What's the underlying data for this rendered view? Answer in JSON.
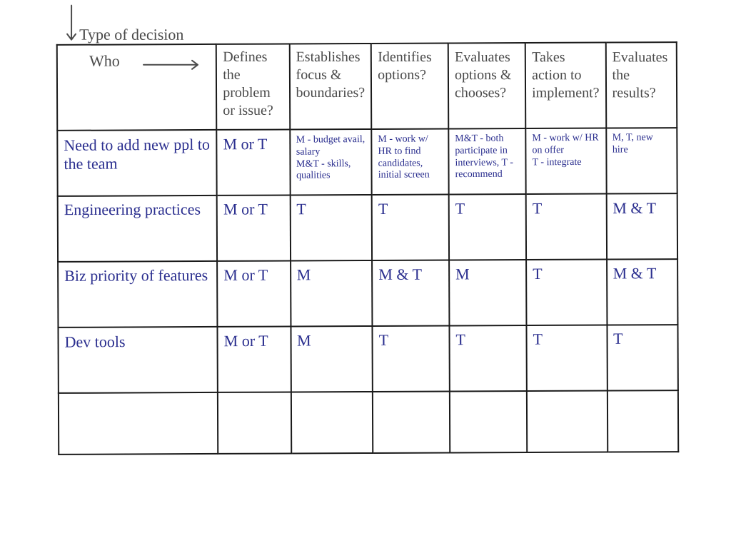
{
  "type": "table",
  "background_color": "#ffffff",
  "border_color": "#1a1a1a",
  "header_text_color": "#4a4a4a",
  "body_text_color": "#2b2f8f",
  "font_family": "handwriting",
  "header_fontsize_pt": 16,
  "body_fontsize_pt": 18,
  "corner": {
    "who_label": "Who",
    "type_label": "Type of decision",
    "arrow_right": true,
    "arrow_down": true
  },
  "columns": [
    "Defines the problem or issue?",
    "Establishes focus & boundaries?",
    "Identifies options?",
    "Evaluates options & chooses?",
    "Takes action to implement?",
    "Evaluates the results?"
  ],
  "rows": [
    {
      "label": "Need to add new ppl to the team",
      "small": true,
      "cells": [
        "M or T",
        "M - budget avail, salary\nM&T - skills, qualities",
        "M - work w/ HR to find candidates, initial screen",
        "M&T - both participate in interviews, T - recommend",
        "M - work w/ HR on offer\nT - integrate",
        "M, T, new hire"
      ]
    },
    {
      "label": "Engineering practices",
      "small": false,
      "cells": [
        "M or T",
        "T",
        "T",
        "T",
        "T",
        "M & T"
      ]
    },
    {
      "label": "Biz priority of features",
      "small": false,
      "cells": [
        "M or T",
        "M",
        "M & T",
        "M",
        "T",
        "M & T"
      ]
    },
    {
      "label": "Dev tools",
      "small": false,
      "cells": [
        "M or T",
        "M",
        "T",
        "T",
        "T",
        "T"
      ]
    },
    {
      "label": "",
      "small": false,
      "cells": [
        "",
        "",
        "",
        "",
        "",
        ""
      ]
    }
  ]
}
